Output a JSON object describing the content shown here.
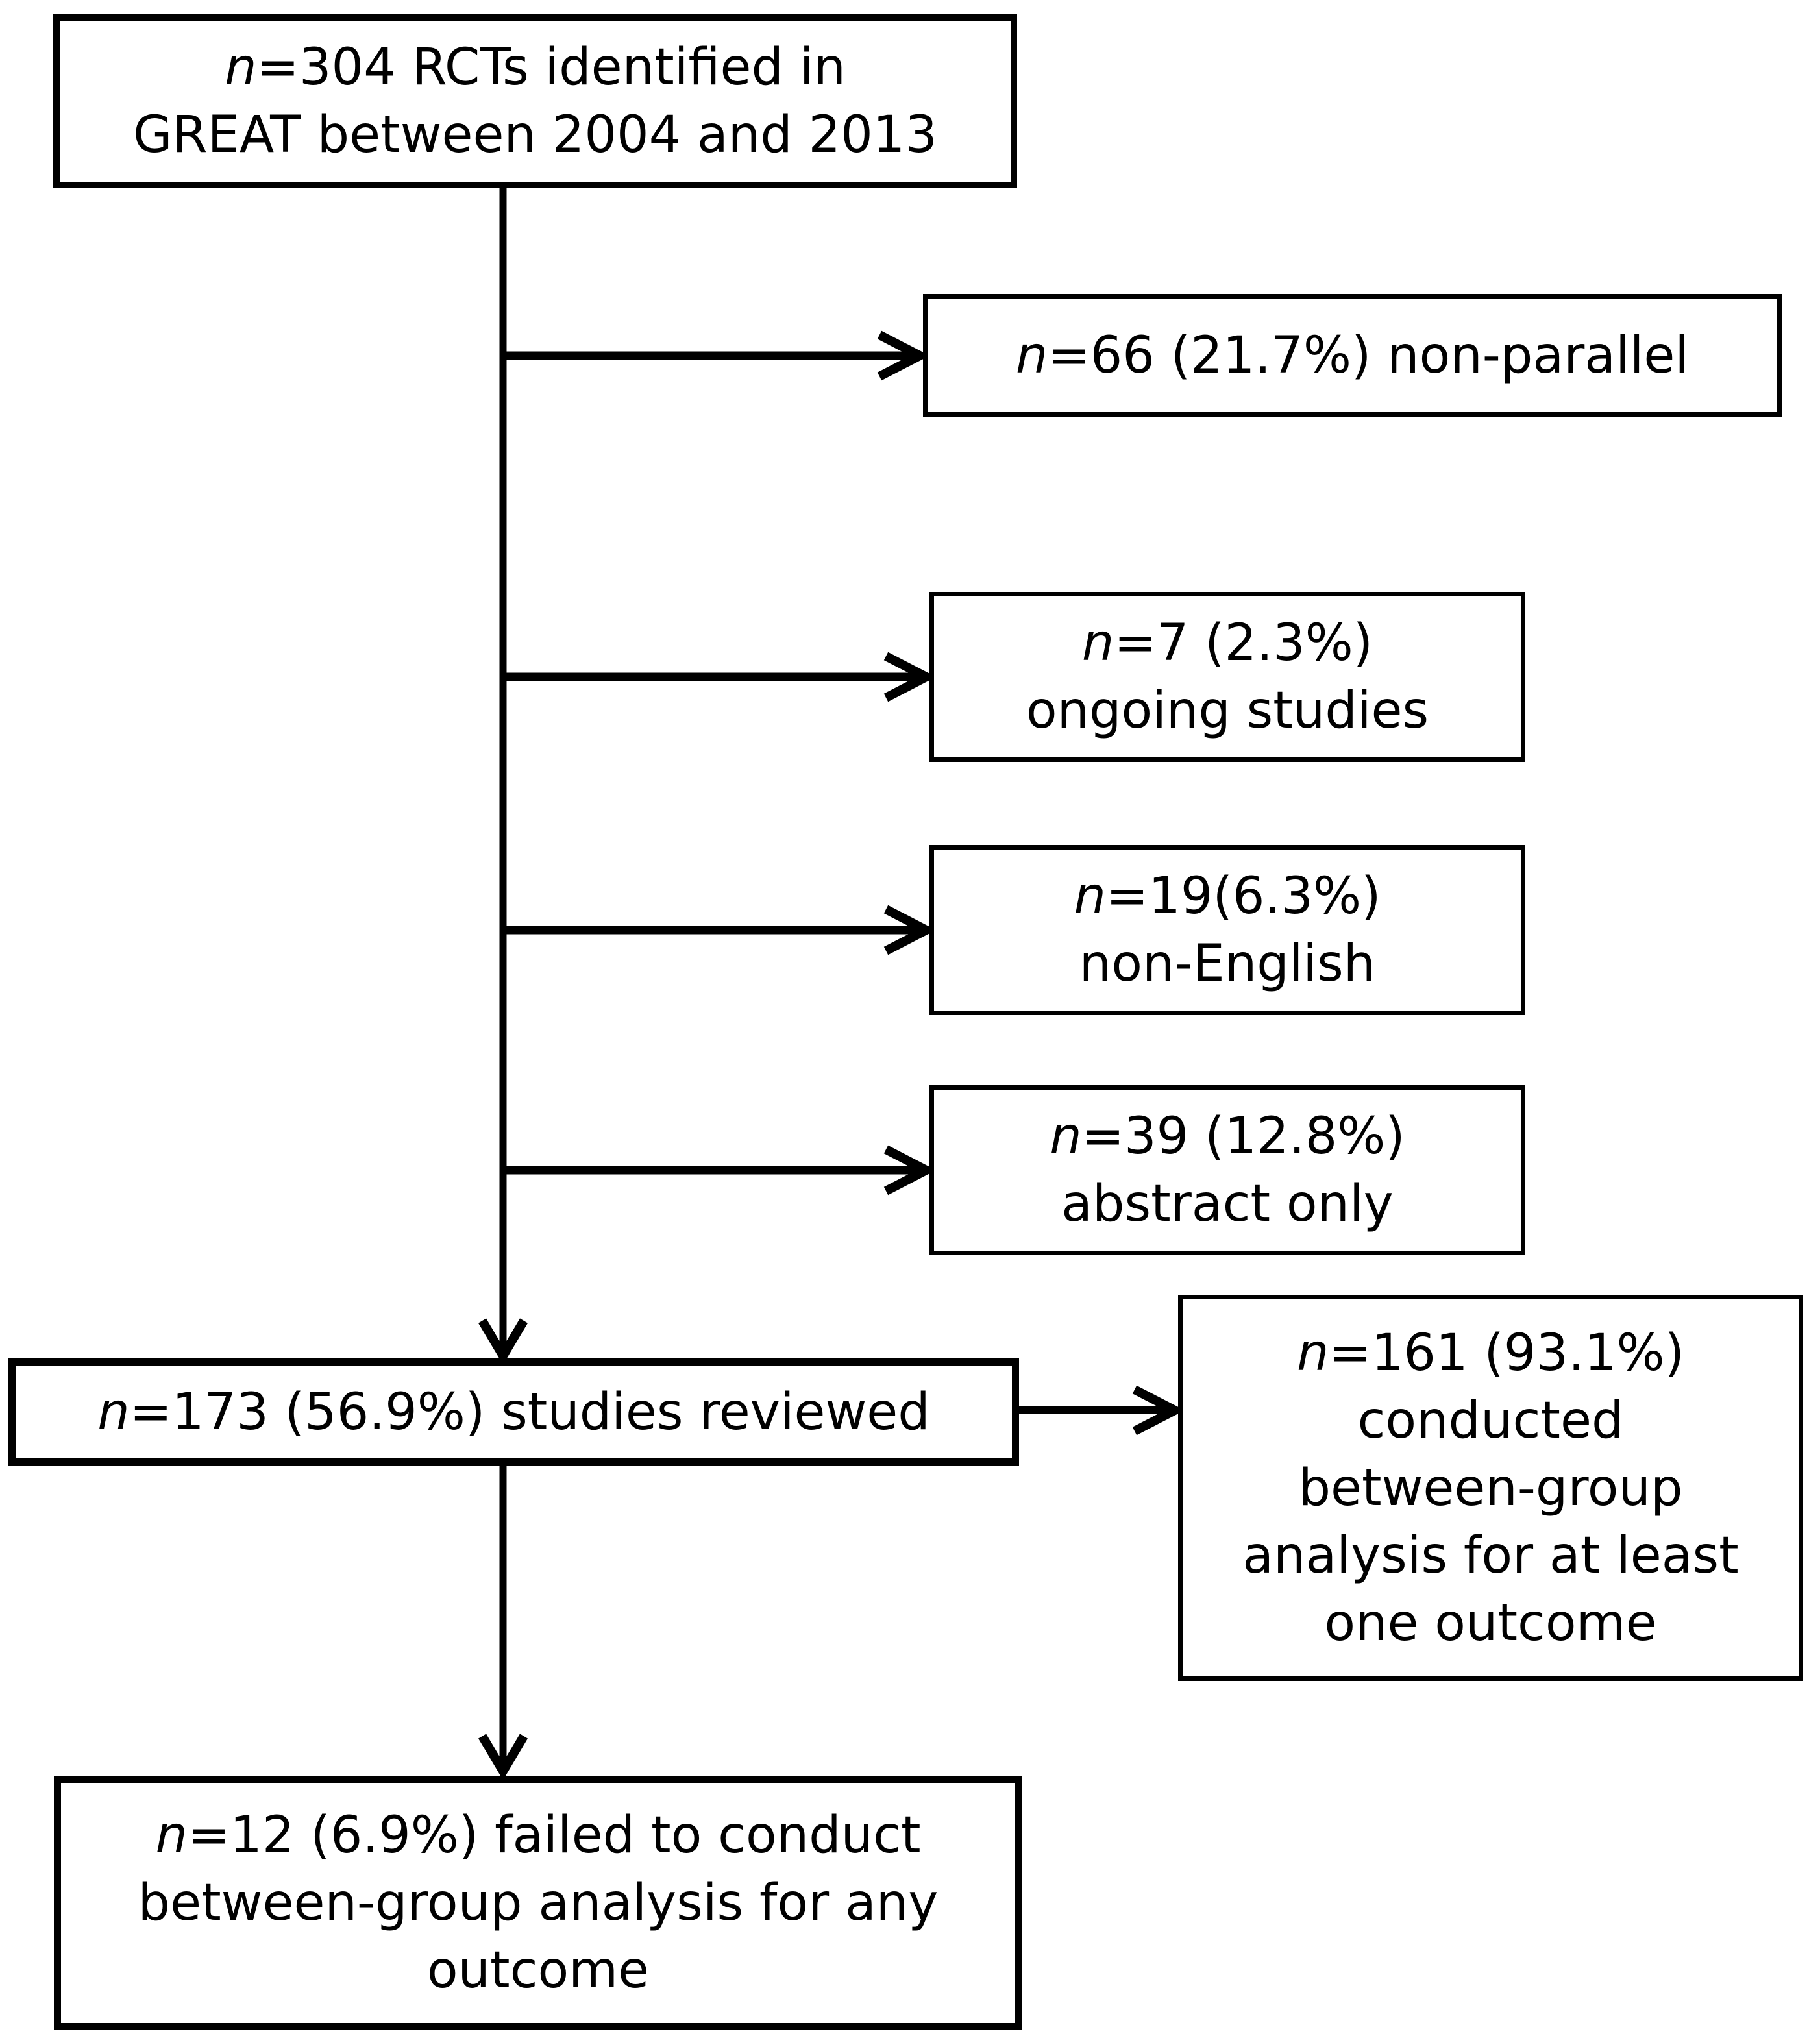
{
  "figure": {
    "type": "flow-diagram",
    "colors": {
      "ink": "#000000",
      "paper": "#ffffff"
    },
    "nodes": [
      {
        "id": "identified",
        "count": 304,
        "lines": [
          "n=304 RCTs identified in",
          "GREAT between 2004 and 2013"
        ]
      },
      {
        "id": "non-parallel",
        "count": 66,
        "percent": "21.7%",
        "lines": [
          "n=66 (21.7%) non-parallel"
        ]
      },
      {
        "id": "ongoing",
        "count": 7,
        "percent": "2.3%",
        "lines": [
          "n=7 (2.3%)",
          "ongoing studies"
        ]
      },
      {
        "id": "non-english",
        "count": 19,
        "percent": "6.3%",
        "lines": [
          "n=19(6.3%)",
          "non-English"
        ]
      },
      {
        "id": "abstract-only",
        "count": 39,
        "percent": "12.8%",
        "lines": [
          "n=39 (12.8%)",
          "abstract only"
        ]
      },
      {
        "id": "reviewed",
        "count": 173,
        "percent": "56.9%",
        "lines": [
          "n=173 (56.9%) studies reviewed"
        ]
      },
      {
        "id": "between-group-done",
        "count": 161,
        "percent": "93.1%",
        "lines": [
          "n=161 (93.1%)",
          "conducted",
          "between-group",
          "analysis for at least",
          "one outcome"
        ]
      },
      {
        "id": "between-group-failed",
        "count": 12,
        "percent": "6.9%",
        "lines": [
          "n=12 (6.9%) failed to conduct",
          "between-group analysis for any",
          "outcome"
        ]
      }
    ],
    "edges": [
      {
        "from": "identified",
        "to": "non-parallel"
      },
      {
        "from": "identified",
        "to": "ongoing"
      },
      {
        "from": "identified",
        "to": "non-english"
      },
      {
        "from": "identified",
        "to": "abstract-only"
      },
      {
        "from": "identified",
        "to": "reviewed"
      },
      {
        "from": "reviewed",
        "to": "between-group-done"
      },
      {
        "from": "reviewed",
        "to": "between-group-failed"
      }
    ]
  }
}
